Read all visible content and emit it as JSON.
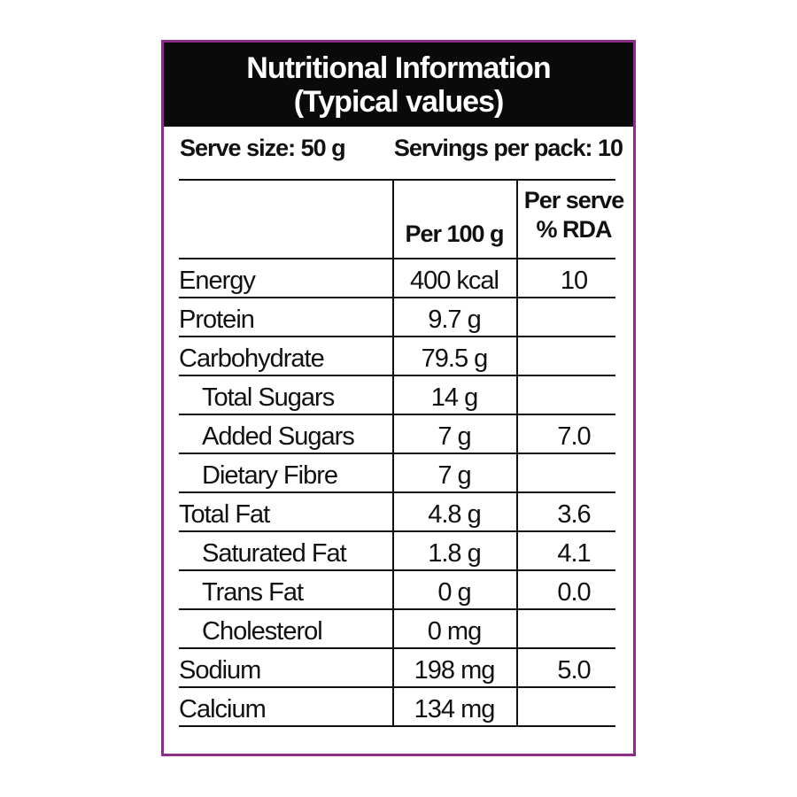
{
  "header": {
    "title_line1": "Nutritional Information",
    "title_line2": "(Typical values)"
  },
  "serving": {
    "serve_size": "Serve size: 50 g",
    "servings_per_pack": "Servings per pack: 10"
  },
  "columns": {
    "per_100g": "Per 100 g",
    "per_serve_line1": "Per serve",
    "per_serve_line2": "% RDA"
  },
  "rows": [
    {
      "label": "Energy",
      "per100": "400 kcal",
      "rda": "10"
    },
    {
      "label": "Protein",
      "per100": "9.7 g",
      "rda": ""
    },
    {
      "label": "Carbohydrate",
      "per100": "79.5 g",
      "rda": ""
    },
    {
      "label": "Total Sugars",
      "per100": "14 g",
      "rda": ""
    },
    {
      "label": "Added Sugars",
      "per100": "7 g",
      "rda": "7.0"
    },
    {
      "label": "Dietary Fibre",
      "per100": "7 g",
      "rda": ""
    },
    {
      "label": "Total Fat",
      "per100": "4.8 g",
      "rda": "3.6"
    },
    {
      "label": "Saturated Fat",
      "per100": "1.8 g",
      "rda": "4.1"
    },
    {
      "label": "Trans Fat",
      "per100": "0 g",
      "rda": "0.0"
    },
    {
      "label": "Cholesterol",
      "per100": "0 mg",
      "rda": ""
    },
    {
      "label": "Sodium",
      "per100": "198 mg",
      "rda": "5.0"
    },
    {
      "label": "Calcium",
      "per100": "134 mg",
      "rda": ""
    }
  ],
  "colors": {
    "border": "#8e2c8a",
    "header_bg": "#0a0a0a",
    "header_text": "#ffffff"
  }
}
